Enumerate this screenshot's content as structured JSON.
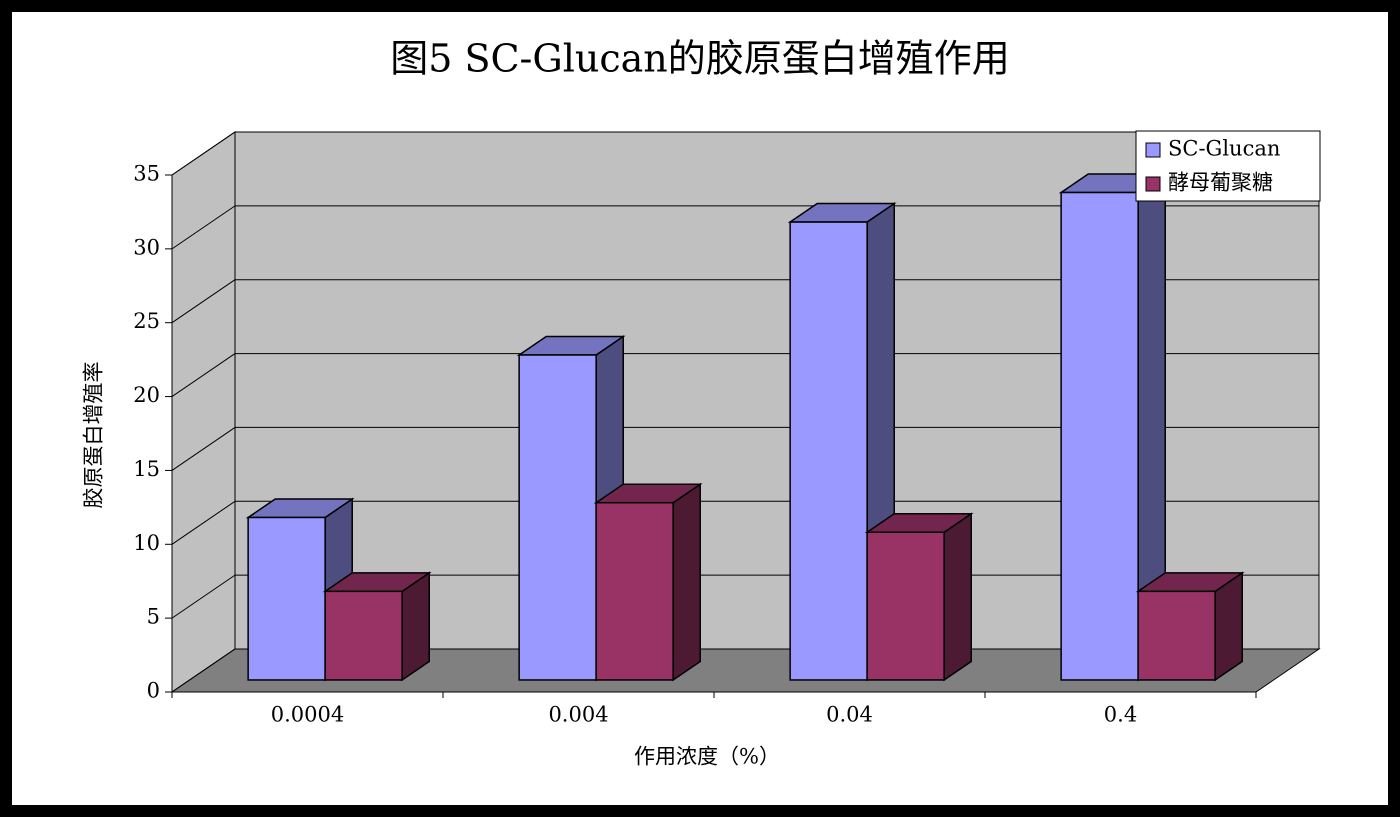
{
  "chart_data": {
    "type": "bar",
    "title": "图5 SC-Glucan的胶原蛋白增殖作用",
    "x_label": "作用浓度（%）",
    "y_label": "胶原蛋白增殖率",
    "categories": [
      "0.0004",
      "0.004",
      "0.04",
      "0.4"
    ],
    "series": [
      {
        "name": "SC-Glucan",
        "color": "#9999ff",
        "values": [
          11,
          22,
          31,
          33
        ]
      },
      {
        "name": "酵母葡聚糖",
        "color": "#993366",
        "values": [
          6,
          12,
          10,
          6
        ]
      }
    ],
    "ylim": [
      0,
      35
    ],
    "yticks": [
      0,
      5,
      10,
      15,
      20,
      25,
      30,
      35
    ],
    "grid": true,
    "legend": "upper right"
  }
}
